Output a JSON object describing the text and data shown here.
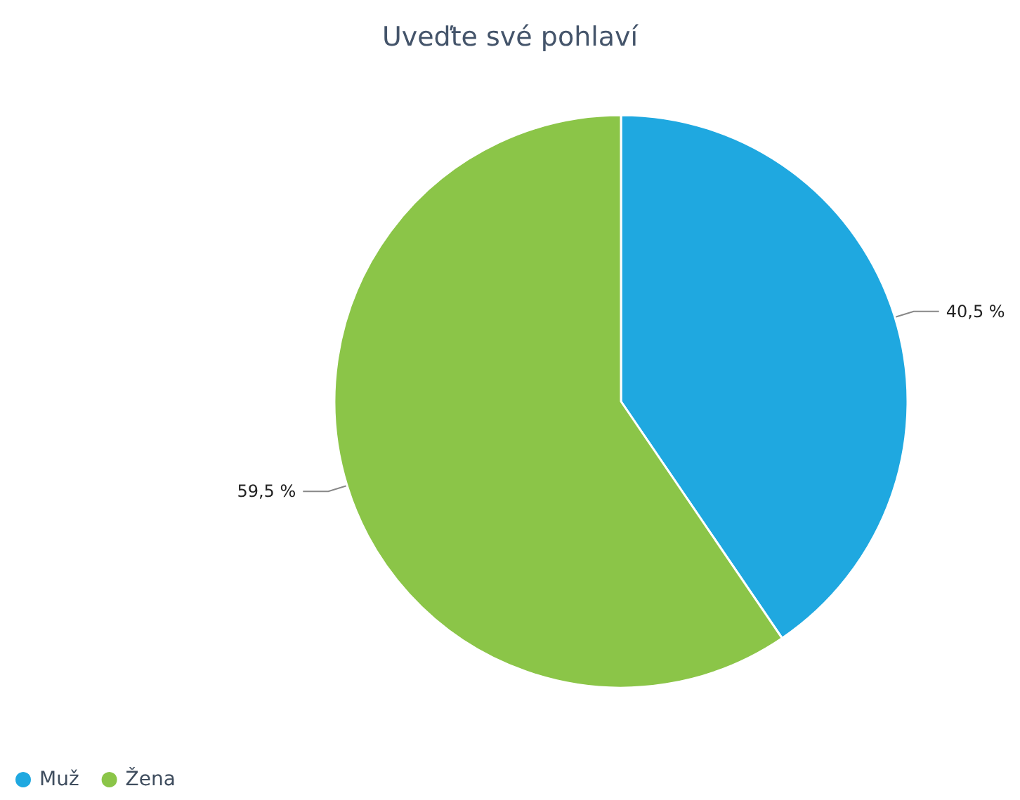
{
  "chart_data": {
    "type": "pie",
    "title": "Uveďte své pohlaví",
    "categories": [
      "Muž",
      "Žena"
    ],
    "values": [
      40.5,
      59.5
    ],
    "value_labels": [
      "40,5 %",
      "59,5 %"
    ],
    "colors": [
      "#1fa8e0",
      "#8bc548"
    ],
    "legend": "bottom left"
  }
}
